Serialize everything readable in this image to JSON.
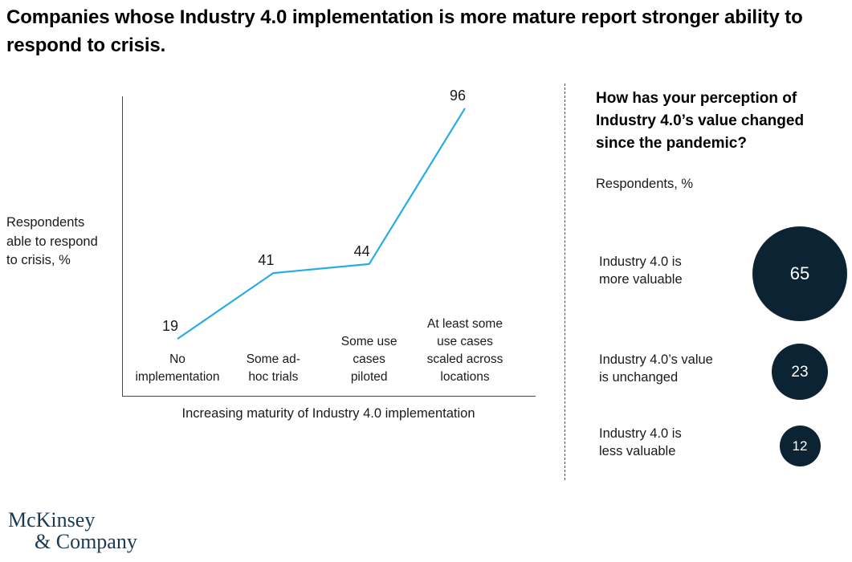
{
  "title": "Companies whose Industry 4.0 implementation is more mature report stronger ability to respond to crisis.",
  "chart_data": [
    {
      "type": "line",
      "categories": [
        "No implementation",
        "Some ad-hoc trials",
        "Some use cases piloted",
        "At least some use cases scaled across locations"
      ],
      "categories_display": [
        "No\nimplementation",
        "Some ad-\nhoc trials",
        "Some use\ncases\npiloted",
        "At least some\nuse cases\nscaled across\nlocations"
      ],
      "values": [
        19,
        41,
        44,
        96
      ],
      "ylabel": "Respondents able to respond to crisis, %",
      "ylabel_display": "Respondents\nable to respond\nto crisis, %",
      "xlabel": "Increasing maturity of Industry 4.0 implementation",
      "ylim": [
        0,
        100
      ],
      "grid": false,
      "legend": "none",
      "line_color": "#29ace3"
    },
    {
      "type": "bubble",
      "title": "How has your perception of Industry 4.0’s value changed since the pandemic?",
      "subtitle": "Respondents, %",
      "categories": [
        "Industry 4.0 is more valuable",
        "Industry 4.0’s value is unchanged",
        "Industry 4.0 is less valuable"
      ],
      "categories_display": [
        "Industry 4.0 is\nmore valuable",
        "Industry 4.0’s value\nis unchanged",
        "Industry 4.0 is\nless valuable"
      ],
      "values": [
        65,
        23,
        12
      ],
      "bubble_color": "#0b2332",
      "value_text_color": "#ffffff"
    }
  ],
  "logo": {
    "line1": "McKinsey",
    "line2": "& Company"
  }
}
